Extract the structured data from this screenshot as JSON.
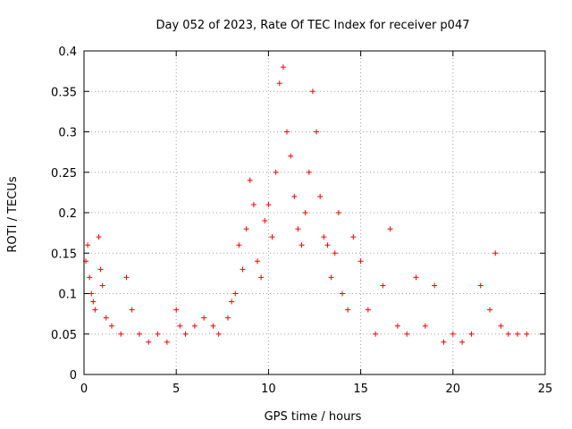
{
  "chart_data": {
    "type": "scatter",
    "title": "Day 052 of 2023, Rate Of TEC Index for receiver p047",
    "xlabel": "GPS time / hours",
    "ylabel": "ROTI / TECUs",
    "xlim": [
      0,
      25
    ],
    "ylim": [
      0,
      0.4
    ],
    "xticks": [
      "0",
      "5",
      "10",
      "15",
      "20",
      "25"
    ],
    "yticks": [
      "0",
      "0.05",
      "0.1",
      "0.15",
      "0.2",
      "0.25",
      "0.3",
      "0.35",
      "0.4"
    ],
    "grid": true,
    "marker": "+",
    "color": "#ff0000",
    "series": [
      {
        "name": "ROTI",
        "x": [
          0.1,
          0.2,
          0.3,
          0.4,
          0.5,
          0.6,
          0.8,
          0.9,
          1.0,
          1.2,
          1.5,
          2.0,
          2.3,
          2.6,
          3.0,
          3.5,
          4.0,
          4.5,
          5.0,
          5.2,
          5.5,
          6.0,
          6.5,
          7.0,
          7.3,
          7.8,
          8.0,
          8.2,
          8.4,
          8.6,
          8.8,
          9.0,
          9.2,
          9.4,
          9.6,
          9.8,
          10.0,
          10.2,
          10.4,
          10.6,
          10.8,
          11.0,
          11.2,
          11.4,
          11.6,
          11.8,
          12.0,
          12.2,
          12.4,
          12.6,
          12.8,
          13.0,
          13.2,
          13.4,
          13.6,
          13.8,
          14.0,
          14.3,
          14.6,
          15.0,
          15.4,
          15.8,
          16.2,
          16.6,
          17.0,
          17.5,
          18.0,
          18.5,
          19.0,
          19.5,
          20.0,
          20.5,
          21.0,
          21.5,
          22.0,
          22.3,
          22.6,
          23.0,
          23.5,
          24.0
        ],
        "y": [
          0.14,
          0.16,
          0.12,
          0.1,
          0.09,
          0.08,
          0.17,
          0.13,
          0.11,
          0.07,
          0.06,
          0.05,
          0.12,
          0.08,
          0.05,
          0.04,
          0.05,
          0.04,
          0.08,
          0.06,
          0.05,
          0.06,
          0.07,
          0.06,
          0.05,
          0.07,
          0.09,
          0.1,
          0.16,
          0.13,
          0.18,
          0.24,
          0.21,
          0.14,
          0.12,
          0.19,
          0.21,
          0.17,
          0.25,
          0.36,
          0.38,
          0.3,
          0.27,
          0.22,
          0.18,
          0.16,
          0.2,
          0.25,
          0.35,
          0.3,
          0.22,
          0.17,
          0.16,
          0.12,
          0.15,
          0.2,
          0.1,
          0.08,
          0.17,
          0.14,
          0.08,
          0.05,
          0.11,
          0.18,
          0.06,
          0.05,
          0.12,
          0.06,
          0.11,
          0.04,
          0.05,
          0.04,
          0.05,
          0.11,
          0.08,
          0.15,
          0.06,
          0.05,
          0.05,
          0.05
        ]
      }
    ]
  }
}
